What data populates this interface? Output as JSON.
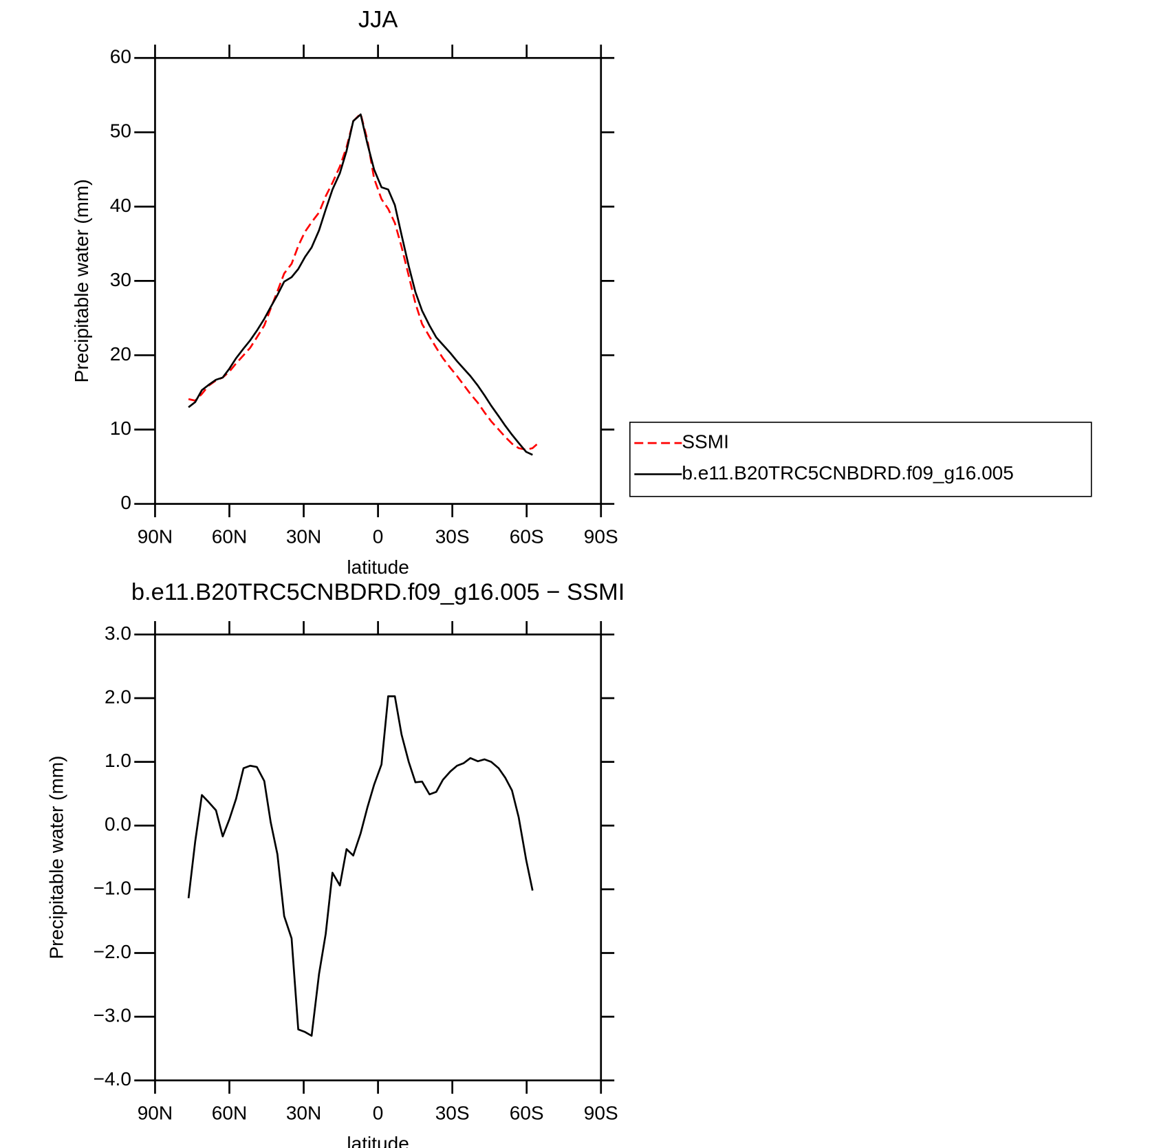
{
  "chart_data": [
    {
      "type": "line",
      "title": "JJA",
      "xlabel": "latitude",
      "ylabel": "Precipitable water (mm)",
      "x": [
        76.5,
        73.8,
        71.1,
        68.4,
        65.4,
        62.7,
        60.0,
        57.3,
        54.3,
        51.6,
        48.9,
        45.9,
        43.3,
        40.6,
        37.9,
        34.9,
        32.2,
        29.5,
        26.8,
        23.8,
        21.1,
        18.4,
        15.4,
        12.7,
        10.0,
        7.0,
        4.3,
        1.6,
        -1.4,
        -4.1,
        -6.8,
        -9.5,
        -12.4,
        -15.1,
        -17.8,
        -20.8,
        -23.5,
        -26.2,
        -29.2,
        -31.9,
        -34.6,
        -37.3,
        -40.3,
        -43.0,
        -45.7,
        -48.7,
        -51.4,
        -54.1,
        -56.8,
        -59.8,
        -62.4,
        -65.4
      ],
      "series": [
        {
          "name": "SSMI",
          "color": "#ff0000",
          "line_style": "dashed",
          "values": [
            14.1,
            13.9,
            14.8,
            15.9,
            16.6,
            17.0,
            17.8,
            18.9,
            20.0,
            21.0,
            22.4,
            24.0,
            26.3,
            28.6,
            31.0,
            32.3,
            34.7,
            36.6,
            37.9,
            39.2,
            41.4,
            43.2,
            45.4,
            48.0,
            51.5,
            52.5,
            49.0,
            43.8,
            41.0,
            39.7,
            37.8,
            34.6,
            30.7,
            27.0,
            24.2,
            22.5,
            21.0,
            19.6,
            18.3,
            17.2,
            16.0,
            14.8,
            13.6,
            12.3,
            11.1,
            10.0,
            9.0,
            8.1,
            7.5,
            7.3,
            7.5,
            8.4
          ]
        },
        {
          "name": "b.e11.B20TRC5CNBDRD.f09_g16.005",
          "color": "#000000",
          "line_style": "solid",
          "values": [
            13.0,
            13.7,
            15.3,
            16.0,
            16.7,
            17.0,
            18.2,
            19.6,
            20.9,
            22.0,
            23.3,
            24.9,
            26.5,
            28.1,
            29.9,
            30.5,
            31.6,
            33.2,
            34.5,
            36.8,
            39.6,
            42.3,
            44.5,
            47.5,
            51.5,
            52.4,
            48.5,
            45.0,
            42.6,
            42.3,
            40.2,
            36.2,
            32.0,
            28.5,
            26.0,
            24.0,
            22.4,
            21.4,
            20.3,
            19.2,
            18.2,
            17.2,
            15.9,
            14.6,
            13.2,
            11.8,
            10.5,
            9.3,
            8.2,
            7.0,
            6.6,
            null
          ]
        }
      ],
      "xlim": [
        90,
        -90
      ],
      "xticks": [
        {
          "value": 90,
          "label": "90N"
        },
        {
          "value": 60,
          "label": "60N"
        },
        {
          "value": 30,
          "label": "30N"
        },
        0,
        {
          "value": -30,
          "label": "30S"
        },
        {
          "value": -60,
          "label": "60S"
        },
        {
          "value": -90,
          "label": "90S"
        }
      ],
      "ylim": [
        0,
        60
      ],
      "yticks": [
        0,
        10,
        20,
        30,
        40,
        50,
        60
      ],
      "legend": "right"
    },
    {
      "type": "line",
      "title": "b.e11.B20TRC5CNBDRD.f09_g16.005 − SSMI",
      "xlabel": "latitude",
      "ylabel": "Precipitable water (mm)",
      "x": [
        76.5,
        73.8,
        71.1,
        68.4,
        65.4,
        62.7,
        60.0,
        57.3,
        54.3,
        51.6,
        48.9,
        45.9,
        43.3,
        40.6,
        37.9,
        34.9,
        32.2,
        29.5,
        26.8,
        23.8,
        21.1,
        18.4,
        15.4,
        12.7,
        10.0,
        7.0,
        4.3,
        1.6,
        -1.4,
        -4.1,
        -6.8,
        -9.5,
        -12.4,
        -15.1,
        -17.8,
        -20.8,
        -23.5,
        -26.2,
        -29.2,
        -31.9,
        -34.6,
        -37.3,
        -40.3,
        -43.0,
        -45.7,
        -48.7,
        -51.4,
        -54.1,
        -56.8,
        -59.8,
        -62.4
      ],
      "series": [
        {
          "color": "#000000",
          "line_style": "solid",
          "values": [
            -1.14,
            -0.25,
            0.48,
            0.37,
            0.24,
            -0.17,
            0.1,
            0.42,
            0.9,
            0.94,
            0.92,
            0.7,
            0.05,
            -0.45,
            -1.42,
            -1.77,
            -3.2,
            -3.24,
            -3.3,
            -2.33,
            -1.7,
            -0.74,
            -0.94,
            -0.37,
            -0.47,
            -0.12,
            0.28,
            0.64,
            0.96,
            2.03,
            2.03,
            1.43,
            1.0,
            0.68,
            0.69,
            0.49,
            0.53,
            0.72,
            0.85,
            0.94,
            0.98,
            1.06,
            1.01,
            1.04,
            1.0,
            0.9,
            0.75,
            0.55,
            0.13,
            -0.54,
            -1.02
          ]
        }
      ],
      "xlim": [
        90,
        -90
      ],
      "xticks": [
        {
          "value": 90,
          "label": "90N"
        },
        {
          "value": 60,
          "label": "60N"
        },
        {
          "value": 30,
          "label": "30N"
        },
        0,
        {
          "value": -30,
          "label": "30S"
        },
        {
          "value": -60,
          "label": "60S"
        },
        {
          "value": -90,
          "label": "90S"
        }
      ],
      "ylim": [
        -4,
        3
      ],
      "yticks": [
        {
          "value": -4,
          "label": "−4.0"
        },
        {
          "value": -3,
          "label": "−3.0"
        },
        {
          "value": -2,
          "label": "−2.0"
        },
        {
          "value": -1,
          "label": "−1.0"
        },
        {
          "value": 0,
          "label": "0.0"
        },
        {
          "value": 1,
          "label": "1.0"
        },
        {
          "value": 2,
          "label": "2.0"
        },
        {
          "value": 3,
          "label": "3.0"
        }
      ]
    }
  ]
}
